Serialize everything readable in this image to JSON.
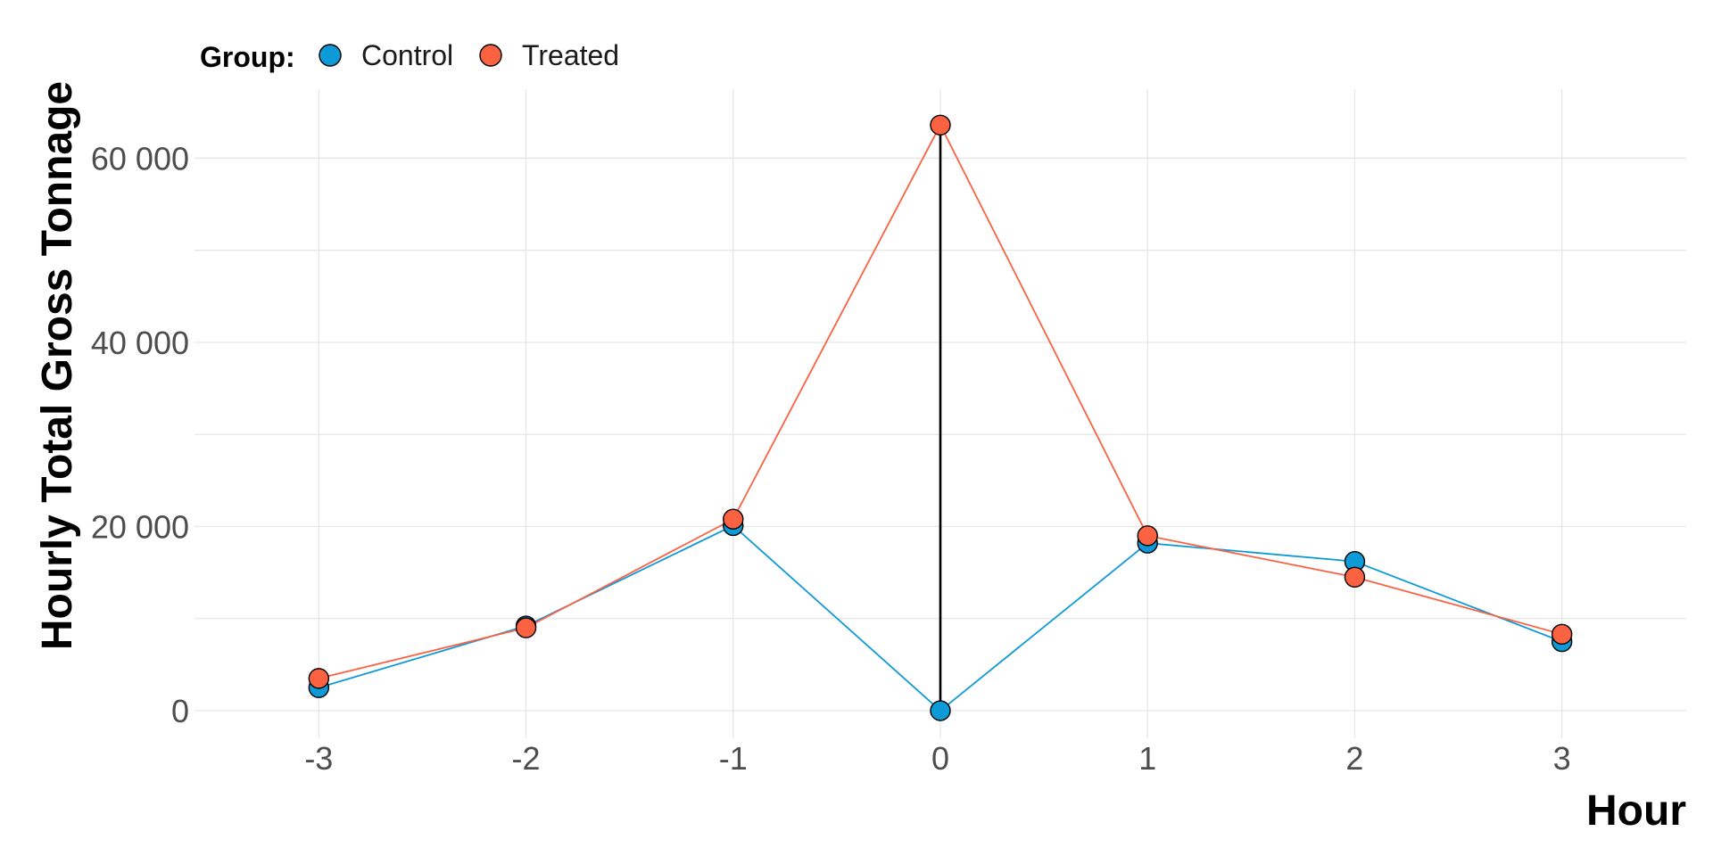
{
  "chart_data": {
    "type": "line",
    "title": "",
    "xlabel": "Hour",
    "ylabel": "Hourly Total Gross Tonnage",
    "x": [
      -3,
      -2,
      -1,
      0,
      1,
      2,
      3
    ],
    "x_tick_labels": [
      "-3",
      "-2",
      "-1",
      "0",
      "1",
      "2",
      "3"
    ],
    "xlim": [
      -3.6,
      3.6
    ],
    "ylim": [
      -3000,
      67500
    ],
    "y_ticks": [
      0,
      20000,
      40000,
      60000
    ],
    "y_tick_labels": [
      "0",
      "20 000",
      "40 000",
      "60 000"
    ],
    "grid": true,
    "legend": {
      "title": "Group:",
      "placement": "top-left"
    },
    "series": [
      {
        "name": "Control",
        "color": "#0e9ad6",
        "values": [
          2500,
          9200,
          20100,
          0,
          18200,
          16200,
          7500
        ]
      },
      {
        "name": "Treated",
        "color": "#fb6242",
        "values": [
          3500,
          9000,
          20800,
          63600,
          19000,
          14500,
          8300
        ]
      }
    ],
    "annotations": [
      {
        "type": "vertical-segment",
        "x": 0,
        "y_from": 0,
        "y_to": 63600,
        "color": "#000000"
      }
    ]
  }
}
